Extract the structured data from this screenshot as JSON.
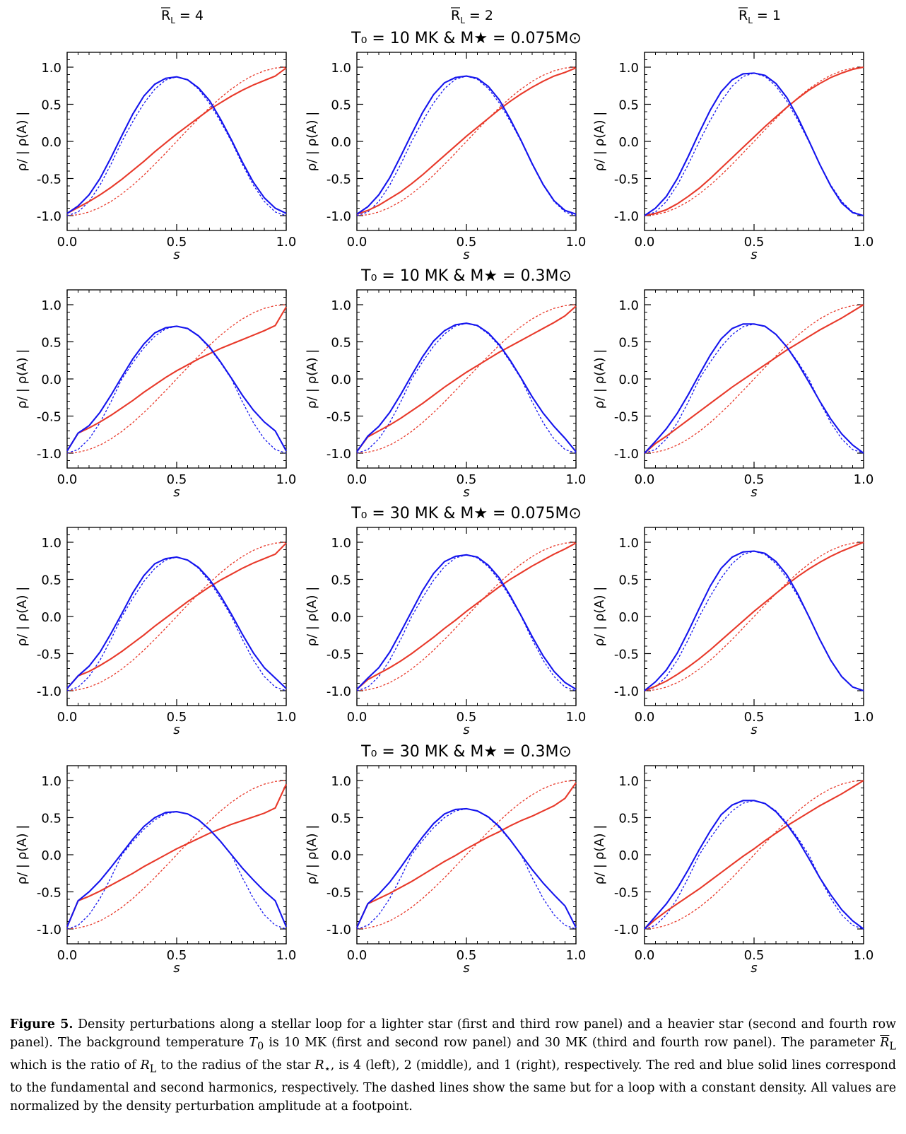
{
  "columns": [
    {
      "symbol": "R",
      "sub": "L",
      "value": "= 4"
    },
    {
      "symbol": "R",
      "sub": "L",
      "value": "= 2"
    },
    {
      "symbol": "R",
      "sub": "L",
      "value": "= 1"
    }
  ],
  "row_titles": [
    "T₀ = 10 MK & M★ = 0.075M⊙",
    "T₀ = 10 MK & M★ = 0.3M⊙",
    "T₀ = 30 MK & M★ = 0.075M⊙",
    "T₀ = 30 MK & M★ = 0.3M⊙"
  ],
  "axes": {
    "xlabel": "s",
    "ylabel": "ρ/ | ρ(A) |",
    "xticks": [
      "0.0",
      "0.5",
      "1.0"
    ],
    "yticks": [
      "1.0",
      "0.5",
      "0.0",
      "-0.5",
      "-1.0"
    ]
  },
  "colors": {
    "fundamental": "#e8392a",
    "second_harmonic": "#1414ee"
  },
  "chart_data": {
    "type": "line",
    "xlim": [
      0,
      1
    ],
    "ylim": [
      -1.2,
      1.2
    ],
    "x": [
      0,
      0.05,
      0.1,
      0.15,
      0.2,
      0.25,
      0.3,
      0.35,
      0.4,
      0.45,
      0.5,
      0.55,
      0.6,
      0.65,
      0.7,
      0.75,
      0.8,
      0.85,
      0.9,
      0.95,
      1.0
    ],
    "constant_density": {
      "fundamental": [
        -1.0,
        -0.988,
        -0.951,
        -0.891,
        -0.809,
        -0.707,
        -0.588,
        -0.454,
        -0.309,
        -0.156,
        0.0,
        0.156,
        0.309,
        0.454,
        0.588,
        0.707,
        0.809,
        0.891,
        0.951,
        0.988,
        1.0
      ],
      "second_harmonic_shape": [
        -1.0,
        -0.951,
        -0.809,
        -0.588,
        -0.309,
        0.0,
        0.309,
        0.588,
        0.809,
        0.951,
        1.0,
        0.951,
        0.809,
        0.588,
        0.309,
        0.0,
        -0.309,
        -0.588,
        -0.809,
        -0.951,
        -1.0
      ]
    },
    "panels": [
      {
        "row": 0,
        "col": 0,
        "blue_peak": 0.87,
        "blue_dashed_peak": 0.87,
        "red": [
          -0.97,
          -0.89,
          -0.81,
          -0.72,
          -0.62,
          -0.51,
          -0.39,
          -0.27,
          -0.14,
          -0.02,
          0.1,
          0.21,
          0.32,
          0.43,
          0.52,
          0.61,
          0.69,
          0.76,
          0.82,
          0.88,
          0.99
        ],
        "blue": [
          -0.97,
          -0.87,
          -0.72,
          -0.5,
          -0.22,
          0.08,
          0.37,
          0.61,
          0.77,
          0.85,
          0.87,
          0.83,
          0.72,
          0.55,
          0.3,
          0.02,
          -0.28,
          -0.55,
          -0.76,
          -0.9,
          -0.97
        ]
      },
      {
        "row": 0,
        "col": 1,
        "blue_peak": 0.88,
        "blue_dashed_peak": 0.88,
        "red": [
          -0.98,
          -0.93,
          -0.86,
          -0.77,
          -0.68,
          -0.57,
          -0.45,
          -0.32,
          -0.19,
          -0.06,
          0.07,
          0.19,
          0.31,
          0.43,
          0.54,
          0.64,
          0.73,
          0.81,
          0.88,
          0.93,
          0.99
        ],
        "blue": [
          -0.98,
          -0.88,
          -0.72,
          -0.49,
          -0.2,
          0.1,
          0.39,
          0.63,
          0.79,
          0.86,
          0.88,
          0.85,
          0.74,
          0.56,
          0.3,
          0.01,
          -0.3,
          -0.58,
          -0.8,
          -0.93,
          -0.98
        ]
      },
      {
        "row": 0,
        "col": 2,
        "blue_peak": 0.92,
        "blue_dashed_peak": 0.92,
        "red": [
          -1.0,
          -0.97,
          -0.92,
          -0.84,
          -0.74,
          -0.63,
          -0.5,
          -0.36,
          -0.22,
          -0.08,
          0.06,
          0.2,
          0.33,
          0.46,
          0.58,
          0.69,
          0.78,
          0.86,
          0.92,
          0.97,
          1.0
        ],
        "blue": [
          -1.0,
          -0.9,
          -0.74,
          -0.5,
          -0.2,
          0.12,
          0.42,
          0.67,
          0.83,
          0.91,
          0.92,
          0.89,
          0.78,
          0.59,
          0.32,
          0.01,
          -0.31,
          -0.6,
          -0.83,
          -0.96,
          -1.0
        ]
      },
      {
        "row": 1,
        "col": 0,
        "blue_peak": 0.71,
        "blue_dashed_peak": 0.71,
        "red": [
          -0.97,
          -0.73,
          -0.66,
          -0.58,
          -0.49,
          -0.39,
          -0.29,
          -0.18,
          -0.08,
          0.02,
          0.11,
          0.19,
          0.27,
          0.34,
          0.41,
          0.47,
          0.53,
          0.59,
          0.65,
          0.72,
          0.97
        ],
        "blue": [
          -0.97,
          -0.73,
          -0.63,
          -0.45,
          -0.22,
          0.03,
          0.27,
          0.47,
          0.62,
          0.69,
          0.71,
          0.68,
          0.58,
          0.43,
          0.23,
          0.01,
          -0.22,
          -0.42,
          -0.58,
          -0.7,
          -0.97
        ]
      },
      {
        "row": 1,
        "col": 1,
        "blue_peak": 0.75,
        "blue_dashed_peak": 0.75,
        "red": [
          -0.98,
          -0.78,
          -0.7,
          -0.62,
          -0.53,
          -0.43,
          -0.33,
          -0.22,
          -0.11,
          -0.01,
          0.09,
          0.18,
          0.27,
          0.36,
          0.44,
          0.52,
          0.6,
          0.68,
          0.76,
          0.85,
          0.98
        ],
        "blue": [
          -0.98,
          -0.77,
          -0.64,
          -0.45,
          -0.21,
          0.05,
          0.3,
          0.51,
          0.65,
          0.73,
          0.75,
          0.72,
          0.62,
          0.46,
          0.25,
          0.01,
          -0.24,
          -0.46,
          -0.64,
          -0.8,
          -0.98
        ]
      },
      {
        "row": 1,
        "col": 2,
        "blue_peak": 0.74,
        "blue_dashed_peak": 0.74,
        "red": [
          -1.0,
          -0.87,
          -0.77,
          -0.66,
          -0.55,
          -0.44,
          -0.33,
          -0.22,
          -0.11,
          -0.01,
          0.09,
          0.19,
          0.29,
          0.39,
          0.48,
          0.57,
          0.66,
          0.74,
          0.82,
          0.91,
          1.0
        ],
        "blue": [
          -1.0,
          -0.84,
          -0.67,
          -0.46,
          -0.21,
          0.06,
          0.32,
          0.54,
          0.68,
          0.74,
          0.74,
          0.71,
          0.6,
          0.43,
          0.21,
          -0.04,
          -0.3,
          -0.54,
          -0.74,
          -0.89,
          -1.0
        ]
      },
      {
        "row": 2,
        "col": 0,
        "blue_peak": 0.8,
        "blue_dashed_peak": 0.8,
        "red": [
          -0.97,
          -0.8,
          -0.74,
          -0.66,
          -0.57,
          -0.47,
          -0.36,
          -0.25,
          -0.13,
          -0.02,
          0.09,
          0.2,
          0.3,
          0.4,
          0.49,
          0.57,
          0.65,
          0.72,
          0.78,
          0.84,
          0.99
        ],
        "blue": [
          -0.97,
          -0.8,
          -0.67,
          -0.48,
          -0.23,
          0.04,
          0.32,
          0.55,
          0.71,
          0.78,
          0.8,
          0.76,
          0.66,
          0.5,
          0.28,
          0.03,
          -0.24,
          -0.49,
          -0.69,
          -0.83,
          -0.97
        ]
      },
      {
        "row": 2,
        "col": 1,
        "blue_peak": 0.83,
        "blue_dashed_peak": 0.83,
        "red": [
          -0.98,
          -0.85,
          -0.77,
          -0.69,
          -0.6,
          -0.5,
          -0.39,
          -0.28,
          -0.16,
          -0.05,
          0.07,
          0.18,
          0.29,
          0.4,
          0.5,
          0.59,
          0.68,
          0.76,
          0.84,
          0.91,
          0.99
        ],
        "blue": [
          -0.98,
          -0.83,
          -0.69,
          -0.48,
          -0.21,
          0.07,
          0.35,
          0.58,
          0.74,
          0.81,
          0.83,
          0.8,
          0.69,
          0.52,
          0.28,
          0.01,
          -0.27,
          -0.53,
          -0.74,
          -0.89,
          -0.98
        ]
      },
      {
        "row": 2,
        "col": 2,
        "blue_peak": 0.88,
        "blue_dashed_peak": 0.88,
        "red": [
          -1.0,
          -0.94,
          -0.87,
          -0.78,
          -0.68,
          -0.57,
          -0.45,
          -0.32,
          -0.19,
          -0.06,
          0.07,
          0.19,
          0.31,
          0.43,
          0.54,
          0.64,
          0.73,
          0.81,
          0.88,
          0.94,
          1.0
        ],
        "blue": [
          -1.0,
          -0.88,
          -0.72,
          -0.49,
          -0.2,
          0.11,
          0.41,
          0.65,
          0.8,
          0.87,
          0.88,
          0.85,
          0.74,
          0.56,
          0.3,
          0.0,
          -0.31,
          -0.59,
          -0.81,
          -0.95,
          -1.0
        ]
      },
      {
        "row": 3,
        "col": 0,
        "blue_peak": 0.58,
        "blue_dashed_peak": 0.58,
        "red": [
          -0.97,
          -0.62,
          -0.56,
          -0.49,
          -0.41,
          -0.33,
          -0.25,
          -0.16,
          -0.08,
          0.0,
          0.08,
          0.15,
          0.22,
          0.29,
          0.35,
          0.41,
          0.46,
          0.51,
          0.56,
          0.63,
          0.95
        ],
        "blue": [
          -0.97,
          -0.62,
          -0.5,
          -0.35,
          -0.17,
          0.02,
          0.21,
          0.38,
          0.5,
          0.57,
          0.58,
          0.55,
          0.47,
          0.34,
          0.18,
          0.0,
          -0.18,
          -0.34,
          -0.49,
          -0.62,
          -0.97
        ]
      },
      {
        "row": 3,
        "col": 1,
        "blue_peak": 0.62,
        "blue_dashed_peak": 0.62,
        "red": [
          -0.98,
          -0.66,
          -0.59,
          -0.52,
          -0.44,
          -0.36,
          -0.27,
          -0.18,
          -0.09,
          -0.01,
          0.08,
          0.16,
          0.24,
          0.31,
          0.39,
          0.46,
          0.52,
          0.59,
          0.66,
          0.76,
          0.97
        ],
        "blue": [
          -0.98,
          -0.66,
          -0.53,
          -0.37,
          -0.17,
          0.04,
          0.24,
          0.42,
          0.55,
          0.61,
          0.62,
          0.59,
          0.51,
          0.38,
          0.2,
          0.0,
          -0.2,
          -0.38,
          -0.54,
          -0.69,
          -0.98
        ]
      },
      {
        "row": 3,
        "col": 2,
        "blue_peak": 0.73,
        "blue_dashed_peak": 0.73,
        "red": [
          -1.0,
          -0.87,
          -0.76,
          -0.66,
          -0.56,
          -0.46,
          -0.35,
          -0.24,
          -0.13,
          -0.02,
          0.08,
          0.19,
          0.29,
          0.39,
          0.48,
          0.57,
          0.66,
          0.74,
          0.82,
          0.91,
          1.0
        ],
        "blue": [
          -1.0,
          -0.83,
          -0.66,
          -0.45,
          -0.2,
          0.07,
          0.32,
          0.54,
          0.67,
          0.73,
          0.73,
          0.69,
          0.58,
          0.41,
          0.2,
          -0.05,
          -0.31,
          -0.54,
          -0.74,
          -0.89,
          -1.0
        ]
      }
    ]
  },
  "caption": {
    "label": "Figure 5.",
    "p1": " Density perturbations along a stellar loop for a lighter star (first and third row panel) and a heavier star (second and fourth row panel). The background temperature ",
    "t0": "T",
    "t0_sub": "0",
    "p2": " is 10 MK (first and second row panel) and 30 MK (third and fourth row panel). The parameter ",
    "rl": "R",
    "rl_sub": "L",
    "p3": " which is the ratio of ",
    "rl2": "R",
    "rl2_sub": "L",
    "p4": " to the radius of the star ",
    "rstar": "R",
    "rstar_sub": "⋆",
    "p5": ", is 4 (left), 2 (middle), and 1 (right), respectively. The red and blue solid lines correspond to the fundamental and second harmonics, respectively. The dashed lines show the same but for a loop with a constant density. All values are normalized by the density perturbation amplitude at a footpoint."
  }
}
